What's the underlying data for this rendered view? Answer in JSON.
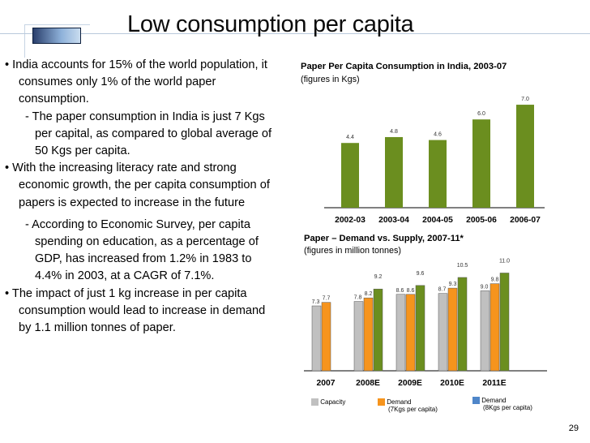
{
  "slide": {
    "title": "Low consumption per capita",
    "page_number": "29"
  },
  "bullets": [
    {
      "level": 1,
      "text": "• India accounts for 15% of the world population, it consumes only 1% of the world paper consumption."
    },
    {
      "level": 2,
      "text": "- The paper consumption in India is just 7 Kgs per capital, as compared to global average of 50 Kgs per capita."
    },
    {
      "level": 1,
      "text": "• With the increasing literacy rate and strong economic growth, the per capita consumption of papers is expected to increase in the future"
    },
    {
      "level": 2,
      "text": "- According to Economic Survey, per capita spending on education, as a percentage of GDP, has increased from 1.2% in 1983 to 4.4% in 2003, at a CAGR of 7.1%."
    },
    {
      "level": 1,
      "text": "• The impact of just 1 kg increase in per capita consumption would lead to increase in demand by 1.1 million tonnes of paper."
    }
  ],
  "colors": {
    "bar_green": "#6b8e1f",
    "bar_grey": "#c0c0c0",
    "bar_orange": "#f6941d",
    "deco_blue": "#2a3f6c"
  },
  "chart_data": [
    {
      "type": "bar",
      "title": "Paper Per Capita Consumption in India, 2003-07",
      "subtitle": "(figures in Kgs)",
      "categories": [
        "2002-03",
        "2003-04",
        "2004-05",
        "2005-06",
        "2006-07"
      ],
      "values": [
        4.4,
        4.8,
        4.6,
        6.0,
        7.0
      ],
      "value_labels": [
        "4.4",
        "4.8",
        "4.6",
        "6.0",
        "7.0"
      ],
      "ylim": [
        0,
        7.5
      ],
      "grid": false,
      "legend": "none"
    },
    {
      "type": "bar",
      "title": "Paper – Demand vs. Supply, 2007-11*",
      "subtitle": "(figures in million tonnes)",
      "categories": [
        "2007",
        "2008E",
        "2009E",
        "2010E",
        "2011E"
      ],
      "series": [
        {
          "name": "Capacity",
          "values": [
            7.3,
            7.8,
            8.6,
            8.7,
            9.0
          ],
          "labels": [
            "7.3",
            "7.8",
            "8.6",
            "8.7",
            "9.0"
          ]
        },
        {
          "name": "Demand (7Kgs per capita)",
          "values": [
            7.7,
            8.2,
            8.6,
            9.3,
            9.8
          ],
          "labels": [
            "7.7",
            "8.2",
            "8.6",
            "9.3",
            "9.8"
          ]
        },
        {
          "name": "Demand (8Kgs per capita)",
          "values": [
            null,
            9.2,
            9.6,
            10.5,
            11.0
          ],
          "labels": [
            "",
            "9.2",
            "9.6",
            "10.5",
            "11.0"
          ]
        }
      ],
      "legend_labels": [
        {
          "line1": "Capacity",
          "line2": ""
        },
        {
          "line1": "Demand",
          "line2": "(7Kgs per capita)"
        },
        {
          "line1": "Demand",
          "line2": "(8Kgs per capita)"
        }
      ],
      "legend_colors": [
        "#c0c0c0",
        "#f6941d",
        "#4f86c9"
      ],
      "ylim": [
        0,
        11.5
      ],
      "grid": false,
      "legend": "bottom"
    }
  ]
}
